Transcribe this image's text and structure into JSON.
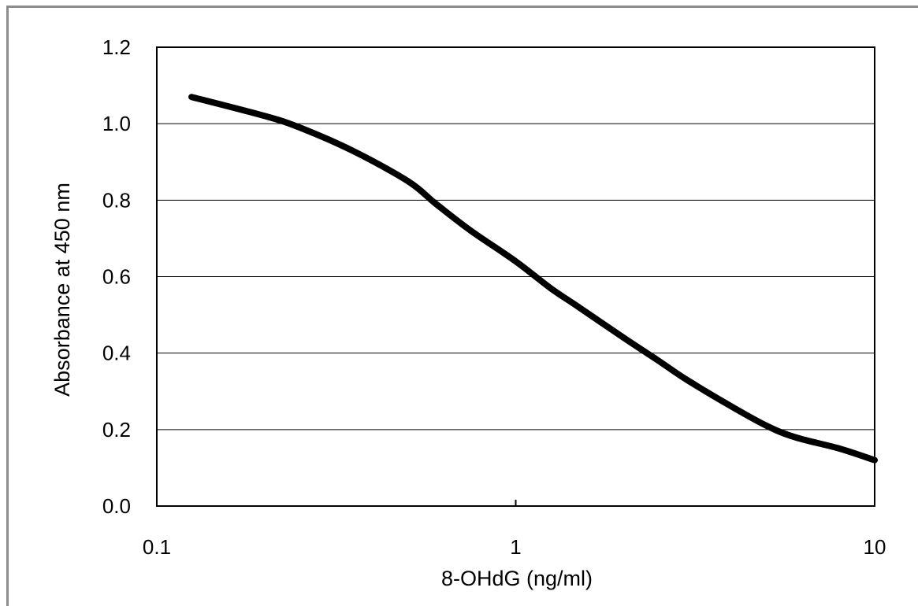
{
  "chart_data": {
    "type": "line",
    "title": "",
    "xlabel": "8-OHdG (ng/ml)",
    "ylabel": "Absorbance at 450 nm",
    "x_scale": "log",
    "xlim": [
      0.1,
      10
    ],
    "ylim": [
      0.0,
      1.2
    ],
    "x_ticks": [
      "0.1",
      "1",
      "10"
    ],
    "y_ticks": [
      "0.0",
      "0.2",
      "0.4",
      "0.6",
      "0.8",
      "1.0",
      "1.2"
    ],
    "grid": "horizontal",
    "legend": "none",
    "line_color": "#000000",
    "series": [
      {
        "x": [
          0.125,
          0.2,
          0.25,
          0.35,
          0.5,
          0.6,
          0.75,
          1.0,
          1.25,
          1.5,
          2.0,
          2.5,
          3.0,
          4.0,
          5.0,
          6.0,
          8.0,
          10.0
        ],
        "values": [
          1.07,
          1.02,
          0.99,
          0.93,
          0.85,
          0.79,
          0.72,
          0.64,
          0.57,
          0.52,
          0.44,
          0.38,
          0.33,
          0.26,
          0.21,
          0.18,
          0.15,
          0.12
        ]
      }
    ]
  }
}
